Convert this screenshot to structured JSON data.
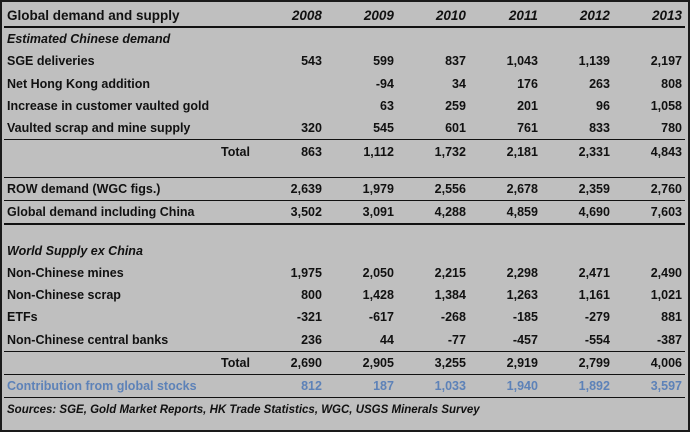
{
  "table": {
    "title": "Global demand and supply",
    "years": [
      "2008",
      "2009",
      "2010",
      "2011",
      "2012",
      "2013"
    ],
    "section1": "Estimated Chinese demand",
    "chinese_rows": [
      {
        "label": "SGE deliveries",
        "values": [
          "543",
          "599",
          "837",
          "1,043",
          "1,139",
          "2,197"
        ]
      },
      {
        "label": "Net Hong Kong addition",
        "values": [
          "",
          "-94",
          "34",
          "176",
          "263",
          "808"
        ]
      },
      {
        "label": "Increase in customer vaulted gold",
        "values": [
          "",
          "63",
          "259",
          "201",
          "96",
          "1,058"
        ]
      },
      {
        "label": "Vaulted scrap and mine supply",
        "values": [
          "320",
          "545",
          "601",
          "761",
          "833",
          "780"
        ]
      }
    ],
    "china_total": {
      "label": "Total",
      "values": [
        "863",
        "1,112",
        "1,732",
        "2,181",
        "2,331",
        "4,843"
      ]
    },
    "row_demand": {
      "label": "ROW demand (WGC figs.)",
      "values": [
        "2,639",
        "1,979",
        "2,556",
        "2,678",
        "2,359",
        "2,760"
      ]
    },
    "global_demand": {
      "label": "Global demand including China",
      "values": [
        "3,502",
        "3,091",
        "4,288",
        "4,859",
        "4,690",
        "7,603"
      ]
    },
    "section2": "World Supply ex China",
    "supply_rows": [
      {
        "label": "Non-Chinese mines",
        "values": [
          "1,975",
          "2,050",
          "2,215",
          "2,298",
          "2,471",
          "2,490"
        ]
      },
      {
        "label": "Non-Chinese scrap",
        "values": [
          "800",
          "1,428",
          "1,384",
          "1,263",
          "1,161",
          "1,021"
        ]
      },
      {
        "label": "ETFs",
        "values": [
          "-321",
          "-617",
          "-268",
          "-185",
          "-279",
          "881"
        ]
      },
      {
        "label": "Non-Chinese central banks",
        "values": [
          "236",
          "44",
          "-77",
          "-457",
          "-554",
          "-387"
        ]
      }
    ],
    "supply_total": {
      "label": "Total",
      "values": [
        "2,690",
        "2,905",
        "3,255",
        "2,919",
        "2,799",
        "4,006"
      ]
    },
    "contribution": {
      "label": "Contribution from global stocks",
      "values": [
        "812",
        "187",
        "1,033",
        "1,940",
        "1,892",
        "3,597"
      ]
    },
    "sources": "Sources: SGE, Gold Market Reports, HK Trade Statistics, WGC, USGS Minerals Survey",
    "contribution_color": "#5d82b8"
  }
}
